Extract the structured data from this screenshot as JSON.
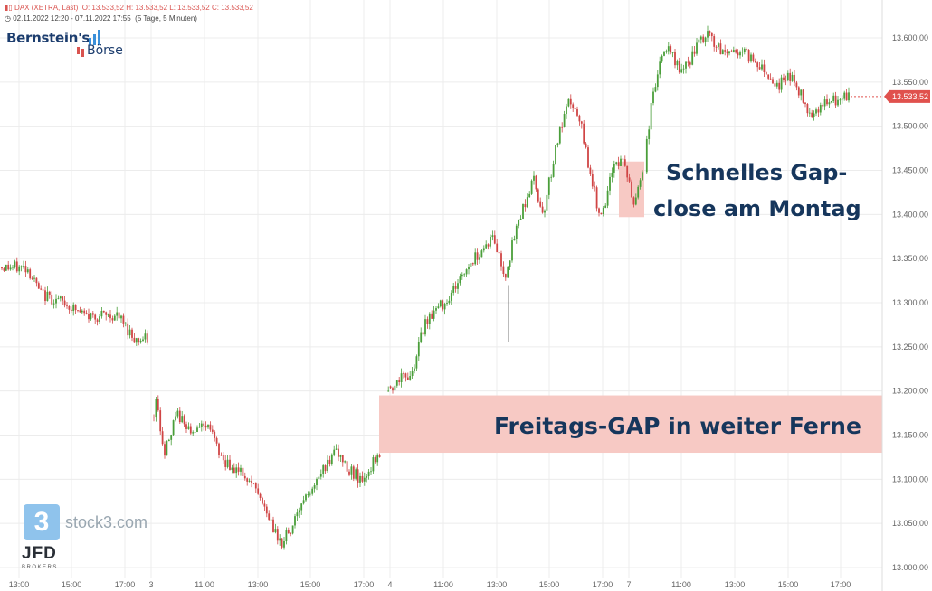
{
  "header": {
    "instrument": "DAX (XETRA, Last)",
    "ohlc": "O: 13.533,52  H: 13.533,52  L: 13.533,52  C: 13.533,52",
    "range": "02.11.2022 12:20 - 07.11.2022 17:55",
    "range_detail": "(5 Tage, 5 Minuten)"
  },
  "logo": {
    "name_top": "Bernstein's",
    "name_bottom": "Börse"
  },
  "watermarks": {
    "stock3": "stock3.com",
    "stock3_icon": "3",
    "broker": "JFD",
    "broker_sub": "BROKERS"
  },
  "annotations": {
    "gap_close_line1": "Schnelles Gap-",
    "gap_close_line2": "close am Montag",
    "friday_gap": "Freitags-GAP in weiter Ferne"
  },
  "chart_data": {
    "type": "candlestick",
    "y_ticks": [
      "13.600,00",
      "13.550,00",
      "13.500,00",
      "13.450,00",
      "13.400,00",
      "13.350,00",
      "13.300,00",
      "13.250,00",
      "13.200,00",
      "13.150,00",
      "13.100,00",
      "13.050,00",
      "13.000,00"
    ],
    "ylim": [
      13000,
      13600
    ],
    "x_ticks": [
      "13:00",
      "15:00",
      "17:00",
      "3",
      "11:00",
      "13:00",
      "15:00",
      "17:00",
      "4",
      "11:00",
      "13:00",
      "15:00",
      "17:00",
      "7",
      "11:00",
      "13:00",
      "15:00",
      "17:00"
    ],
    "last_price_label": "13.533,52",
    "last_price": 13533.52,
    "gap_zones": [
      {
        "name": "Friday gap",
        "from": 13130,
        "to": 13195
      },
      {
        "name": "Monday gap",
        "from": 13397,
        "to": 13460
      }
    ],
    "key_levels": [
      {
        "segment": "Nov 2 close",
        "value": 13258
      },
      {
        "segment": "Nov 3 open",
        "value": 13190
      },
      {
        "segment": "Nov 3 low",
        "value": 13022
      },
      {
        "segment": "Nov 3 close",
        "value": 13130
      },
      {
        "segment": "Nov 4 open",
        "value": 13195
      },
      {
        "segment": "Nov 4 high",
        "value": 13542
      },
      {
        "segment": "Nov 4 close",
        "value": 13462
      },
      {
        "segment": "Nov 7 low",
        "value": 13395
      },
      {
        "segment": "Nov 7 high",
        "value": 13608
      },
      {
        "segment": "Nov 7 last",
        "value": 13533.52
      }
    ]
  },
  "colors": {
    "up": "#4a9e3a",
    "down": "#d04545",
    "gap_fill": "#f7c9c4",
    "price_tag": "#e0514d",
    "grid": "#ececec",
    "text": "#16365c"
  }
}
